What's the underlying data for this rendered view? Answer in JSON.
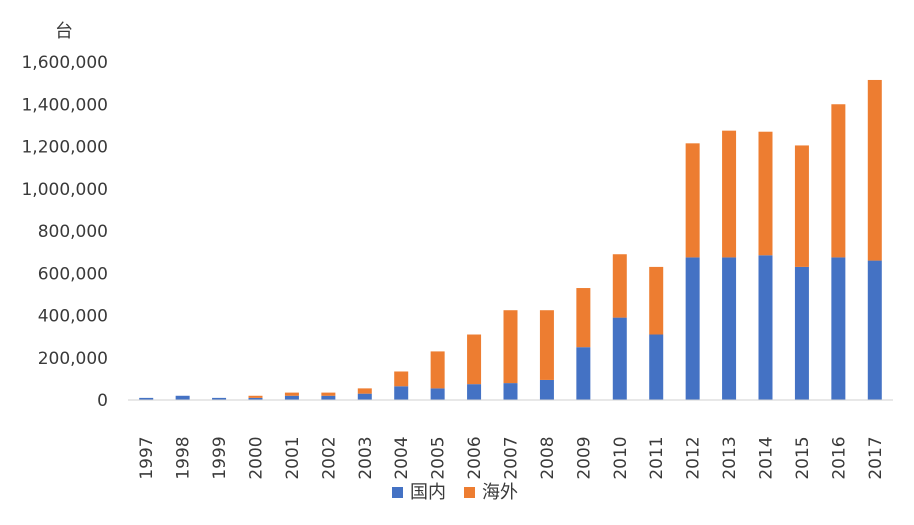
{
  "chart_data": {
    "type": "bar",
    "stacked": true,
    "title": "",
    "xlabel": "",
    "ylabel": "台",
    "ylim": [
      0,
      1600000
    ],
    "yticks": [
      "0",
      "200,000",
      "400,000",
      "600,000",
      "800,000",
      "1,000,000",
      "1,200,000",
      "1,400,000",
      "1,600,000"
    ],
    "categories": [
      "1997",
      "1998",
      "1999",
      "2000",
      "2001",
      "2002",
      "2003",
      "2004",
      "2005",
      "2006",
      "2007",
      "2008",
      "2009",
      "2010",
      "2011",
      "2012",
      "2013",
      "2014",
      "2015",
      "2016",
      "2017"
    ],
    "series": [
      {
        "name": "国内",
        "color": "#4472C4",
        "values": [
          10000,
          20000,
          10000,
          10000,
          20000,
          20000,
          30000,
          65000,
          55000,
          75000,
          80000,
          95000,
          250000,
          390000,
          310000,
          675000,
          675000,
          685000,
          630000,
          675000,
          660000
        ]
      },
      {
        "name": "海外",
        "color": "#ED7D31",
        "values": [
          0,
          0,
          0,
          10000,
          15000,
          15000,
          25000,
          70000,
          175000,
          235000,
          345000,
          330000,
          280000,
          300000,
          320000,
          540000,
          600000,
          585000,
          575000,
          725000,
          855000
        ]
      }
    ],
    "grid": false,
    "legend_position": "bottom"
  }
}
